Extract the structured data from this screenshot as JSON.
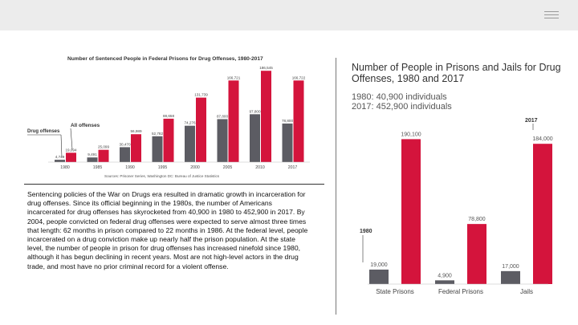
{
  "chart_data": [
    {
      "type": "bar",
      "title": "Number of Sentenced People in Federal Prisons for Drug Offenses, 1980-2017",
      "categories": [
        "1980",
        "1985",
        "1990",
        "1995",
        "2000",
        "2005",
        "2010",
        "2017"
      ],
      "series": [
        {
          "name": "Drug offenses",
          "values": [
            4749,
            9491,
            30470,
            52782,
            74276,
            87800,
            97800,
            78800
          ],
          "labels": [
            "4,749",
            "9,491",
            "30,470",
            "52,782",
            "74,276",
            "87,800",
            "97,800",
            "78,800"
          ]
        },
        {
          "name": "All offenses",
          "values": [
            19094,
            25099,
            56989,
            88658,
            131739,
            166721,
            186545,
            166722
          ],
          "labels": [
            "19,094",
            "25,099",
            "56,989",
            "88,658",
            "131,739",
            "166,721",
            "186,545",
            "166,722"
          ]
        }
      ],
      "legend": {
        "drug": "Drug offenses",
        "all": "All offenses"
      },
      "source": "Sources: Prisoner Series, Washington DC: Bureau of Justice Statistics",
      "ylim": [
        0,
        200000
      ]
    },
    {
      "type": "bar",
      "title_line1": "Number of People in Prisons and Jails for Drug",
      "title_line2": "Offenses, 1980 and 2017",
      "summary_1980": "1980: 40,900 individuals",
      "summary_2017": "2017: 452,900 individuals",
      "categories": [
        "State Prisons",
        "Federal Prisons",
        "Jails"
      ],
      "series": [
        {
          "name": "1980",
          "values": [
            19000,
            4900,
            17000
          ],
          "labels": [
            "19,000",
            "4,900",
            "17,000"
          ]
        },
        {
          "name": "2017",
          "values": [
            190100,
            78800,
            184000
          ],
          "labels": [
            "190,100",
            "78,800",
            "184,000"
          ]
        }
      ],
      "year_tag_1980": "1980",
      "year_tag_2017": "2017",
      "ylim": [
        0,
        200000
      ]
    }
  ],
  "caption": "Sentencing policies of the War on Drugs era resulted in dramatic growth in incarceration for drug offenses. Since its official beginning in the 1980s, the number of Americans incarcerated for drug offenses has skyrocketed from 40,900 in 1980 to 452,900 in 2017. By 2004, people convicted on federal drug offenses were expected to serve almost three times that length: 62 months in prison compared to 22 months in 1986. At the federal level, people incarcerated on a drug conviction make up nearly half the prison population. At the state level, the number of people in prison for drug offenses has increased ninefold since 1980, although it has begun declining in recent years. Most are not high-level actors in the drug trade, and most have no prior criminal record for a violent offense.",
  "colors": {
    "red": "#d4143c",
    "gray": "#5c5c63",
    "title": "#3a3a3a"
  }
}
